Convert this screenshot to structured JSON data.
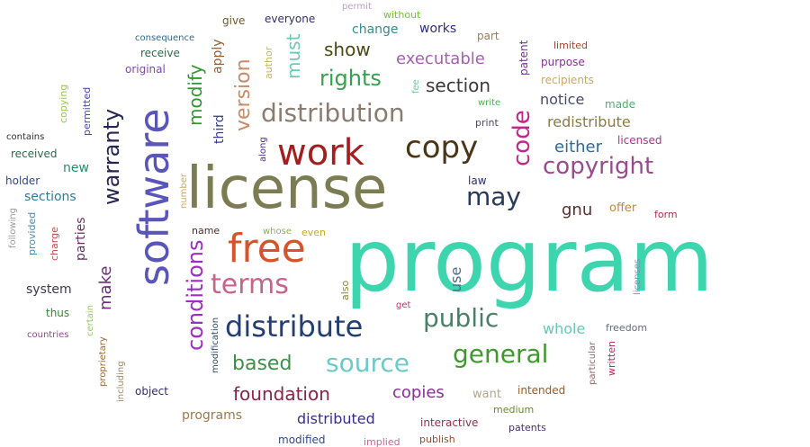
{
  "words": [
    {
      "text": "program",
      "color": "#3dd5ae",
      "vertical": false
    },
    {
      "text": "license",
      "color": "#7b7c52",
      "vertical": false
    },
    {
      "text": "software",
      "color": "#5a56b9",
      "vertical": true
    },
    {
      "text": "work",
      "color": "#a31f1f",
      "vertical": false
    },
    {
      "text": "free",
      "color": "#d9532a",
      "vertical": false
    },
    {
      "text": "copy",
      "color": "#4a3516",
      "vertical": false
    },
    {
      "text": "distribution",
      "color": "#8a7c6e",
      "vertical": false
    },
    {
      "text": "distribute",
      "color": "#233e73",
      "vertical": false
    },
    {
      "text": "terms",
      "color": "#c7648a",
      "vertical": false
    },
    {
      "text": "copyright",
      "color": "#9c4a8e",
      "vertical": false
    },
    {
      "text": "may",
      "color": "#263a5c",
      "vertical": false
    },
    {
      "text": "code",
      "color": "#c2268a",
      "vertical": true
    },
    {
      "text": "public",
      "color": "#4a8068",
      "vertical": false
    },
    {
      "text": "source",
      "color": "#6ccac8",
      "vertical": false
    },
    {
      "text": "general",
      "color": "#3f9a2e",
      "vertical": false
    },
    {
      "text": "conditions",
      "color": "#9c2ec2",
      "vertical": true
    },
    {
      "text": "warranty",
      "color": "#262650",
      "vertical": true
    },
    {
      "text": "rights",
      "color": "#37a04c",
      "vertical": false
    },
    {
      "text": "version",
      "color": "#c98a68",
      "vertical": true
    },
    {
      "text": "based",
      "color": "#3e8f4c",
      "vertical": false
    },
    {
      "text": "foundation",
      "color": "#8a2445",
      "vertical": false
    },
    {
      "text": "section",
      "color": "#3a3a3a",
      "vertical": false
    },
    {
      "text": "modify",
      "color": "#2e9a2e",
      "vertical": true
    },
    {
      "text": "show",
      "color": "#4a4a16",
      "vertical": false
    },
    {
      "text": "must",
      "color": "#6ccab2",
      "vertical": true
    },
    {
      "text": "executable",
      "color": "#a660b0",
      "vertical": false
    },
    {
      "text": "make",
      "color": "#6a2e7a",
      "vertical": true
    },
    {
      "text": "copies",
      "color": "#8a2e9a",
      "vertical": false
    },
    {
      "text": "gnu",
      "color": "#5a2e2e",
      "vertical": false
    },
    {
      "text": "either",
      "color": "#2e6a9a",
      "vertical": false
    },
    {
      "text": "notice",
      "color": "#4a4a6a",
      "vertical": false
    },
    {
      "text": "redistribute",
      "color": "#8a7a4a",
      "vertical": false
    },
    {
      "text": "whole",
      "color": "#6ac8b2",
      "vertical": false
    },
    {
      "text": "distributed",
      "color": "#3a2e8a",
      "vertical": false
    },
    {
      "text": "programs",
      "color": "#9a7a4a",
      "vertical": false
    },
    {
      "text": "sections",
      "color": "#2e7a9a",
      "vertical": false
    },
    {
      "text": "new",
      "color": "#2e8a6a",
      "vertical": false
    },
    {
      "text": "parties",
      "color": "#6a2e6a",
      "vertical": true
    },
    {
      "text": "use",
      "color": "#4a6a8a",
      "vertical": true
    },
    {
      "text": "change",
      "color": "#3a8a8a",
      "vertical": false
    },
    {
      "text": "works",
      "color": "#2e2e8a",
      "vertical": false
    },
    {
      "text": "system",
      "color": "#3a3a4a",
      "vertical": false
    },
    {
      "text": "third",
      "color": "#3a3a8a",
      "vertical": true
    },
    {
      "text": "apply",
      "color": "#9a5a2e",
      "vertical": true
    },
    {
      "text": "give",
      "color": "#6a5a2e",
      "vertical": false
    },
    {
      "text": "everyone",
      "color": "#2e2e6a",
      "vertical": false
    },
    {
      "text": "without",
      "color": "#6ac82e",
      "vertical": false
    },
    {
      "text": "permit",
      "color": "#c89ac8",
      "vertical": false
    },
    {
      "text": "part",
      "color": "#9a7a5a",
      "vertical": false
    },
    {
      "text": "patent",
      "color": "#7a2e9a",
      "vertical": true
    },
    {
      "text": "limited",
      "color": "#9a4a2e",
      "vertical": false
    },
    {
      "text": "purpose",
      "color": "#8a2e9a",
      "vertical": false
    },
    {
      "text": "recipients",
      "color": "#c8a86a",
      "vertical": false
    },
    {
      "text": "made",
      "color": "#4ab26a",
      "vertical": false
    },
    {
      "text": "licensed",
      "color": "#b22e8a",
      "vertical": false
    },
    {
      "text": "offer",
      "color": "#c8882e",
      "vertical": false
    },
    {
      "text": "form",
      "color": "#b22e4a",
      "vertical": false
    },
    {
      "text": "law",
      "color": "#2e2e6a",
      "vertical": false
    },
    {
      "text": "print",
      "color": "#4a4a6a",
      "vertical": false
    },
    {
      "text": "write",
      "color": "#4ab24a",
      "vertical": false
    },
    {
      "text": "fee",
      "color": "#6ac89a",
      "vertical": true
    },
    {
      "text": "consequence",
      "color": "#2e6a8a",
      "vertical": false
    },
    {
      "text": "receive",
      "color": "#2e6a4a",
      "vertical": false
    },
    {
      "text": "original",
      "color": "#7a4ab2",
      "vertical": false
    },
    {
      "text": "author",
      "color": "#c8b26a",
      "vertical": true
    },
    {
      "text": "copying",
      "color": "#9ac84a",
      "vertical": true
    },
    {
      "text": "permitted",
      "color": "#4a4ab2",
      "vertical": true
    },
    {
      "text": "contains",
      "color": "#2e2e2e",
      "vertical": false
    },
    {
      "text": "received",
      "color": "#2e6a4a",
      "vertical": false
    },
    {
      "text": "holder",
      "color": "#2e4a8a",
      "vertical": false
    },
    {
      "text": "along",
      "color": "#4a2e8a",
      "vertical": true
    },
    {
      "text": "number",
      "color": "#c8a86a",
      "vertical": true
    },
    {
      "text": "following",
      "color": "#9a9a9a",
      "vertical": true
    },
    {
      "text": "provided",
      "color": "#4a8ab2",
      "vertical": true
    },
    {
      "text": "charge",
      "color": "#c84a4a",
      "vertical": true
    },
    {
      "text": "thus",
      "color": "#2e8a2e",
      "vertical": false
    },
    {
      "text": "countries",
      "color": "#8a4a8a",
      "vertical": false
    },
    {
      "text": "certain",
      "color": "#9ac86a",
      "vertical": true
    },
    {
      "text": "proprietary",
      "color": "#9a6a2e",
      "vertical": true
    },
    {
      "text": "including",
      "color": "#9a8a6a",
      "vertical": true
    },
    {
      "text": "object",
      "color": "#2e2e6a",
      "vertical": false
    },
    {
      "text": "modification",
      "color": "#2e4a6a",
      "vertical": true
    },
    {
      "text": "name",
      "color": "#4a2e2e",
      "vertical": false
    },
    {
      "text": "whose",
      "color": "#8ab24a",
      "vertical": false
    },
    {
      "text": "even",
      "color": "#c8a82e",
      "vertical": false
    },
    {
      "text": "also",
      "color": "#8a8a2e",
      "vertical": true
    },
    {
      "text": "get",
      "color": "#c82e6a",
      "vertical": false
    },
    {
      "text": "licenses",
      "color": "#8a8ab2",
      "vertical": true
    },
    {
      "text": "freedom",
      "color": "#6a6a7a",
      "vertical": false
    },
    {
      "text": "want",
      "color": "#b2a88a",
      "vertical": false
    },
    {
      "text": "intended",
      "color": "#9a5a2e",
      "vertical": false
    },
    {
      "text": "medium",
      "color": "#6a8a2e",
      "vertical": false
    },
    {
      "text": "particular",
      "color": "#8a6a6a",
      "vertical": true
    },
    {
      "text": "written",
      "color": "#b22e6a",
      "vertical": true
    },
    {
      "text": "interactive",
      "color": "#9a2e4a",
      "vertical": false
    },
    {
      "text": "patents",
      "color": "#4a2e6a",
      "vertical": false
    },
    {
      "text": "publish",
      "color": "#9a4a2e",
      "vertical": false
    },
    {
      "text": "implied",
      "color": "#c86a8a",
      "vertical": false
    },
    {
      "text": "modified",
      "color": "#2e4a8a",
      "vertical": false
    }
  ]
}
